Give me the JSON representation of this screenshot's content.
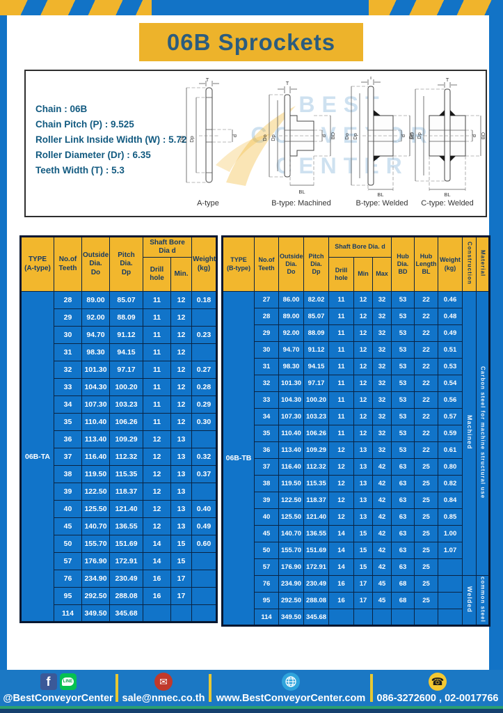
{
  "page": {
    "title": "06B Sprockets"
  },
  "specs": {
    "text": "Chain : 06B\nChain Pitch (P) : 9.525\nRoller Link Inside Width (W) : 5.72\nRoller Diameter (Dr) : 6.35\nTeeth Width (T) : 5.3"
  },
  "watermark": {
    "text": "BEST\nCONVEYOR\nCENTER"
  },
  "diagrams": {
    "captions": {
      "a": "A-type",
      "b_machined": "B-type: Machined",
      "b_welded": "B-type: Welded",
      "c_welded": "C-type: Welded"
    },
    "labels": {
      "T": "T",
      "Do": "Do",
      "Dp": "Dp",
      "d": "d",
      "BD": "BD",
      "BL": "BL"
    }
  },
  "table_a": {
    "headers": {
      "type": "TYPE\n(A-type)",
      "teeth": "No.of\nTeeth",
      "outside": "Outside\nDia.\nDo",
      "pitch": "Pitch Dia.\nDp",
      "shaft": "Shaft Bore Dia d",
      "drill": "Drill hole",
      "min": "Min.",
      "weight": "Weight\n(kg)"
    },
    "rows": [
      [
        "28",
        "89.00",
        "85.07",
        "11",
        "12",
        "0.18"
      ],
      [
        "29",
        "92.00",
        "88.09",
        "11",
        "12",
        ""
      ],
      [
        "30",
        "94.70",
        "91.12",
        "11",
        "12",
        "0.23"
      ],
      [
        "31",
        "98.30",
        "94.15",
        "11",
        "12",
        ""
      ],
      [
        "32",
        "101.30",
        "97.17",
        "11",
        "12",
        "0.27"
      ],
      [
        "33",
        "104.30",
        "100.20",
        "11",
        "12",
        "0.28"
      ],
      [
        "34",
        "107.30",
        "103.23",
        "11",
        "12",
        "0.29"
      ],
      [
        "35",
        "110.40",
        "106.26",
        "11",
        "12",
        "0.30"
      ],
      [
        "36",
        "113.40",
        "109.29",
        "12",
        "13",
        ""
      ],
      [
        "37",
        "116.40",
        "112.32",
        "12",
        "13",
        "0.32"
      ],
      [
        "38",
        "119.50",
        "115.35",
        "12",
        "13",
        "0.37"
      ],
      [
        "39",
        "122.50",
        "118.37",
        "12",
        "13",
        ""
      ],
      [
        "40",
        "125.50",
        "121.40",
        "12",
        "13",
        "0.40"
      ],
      [
        "45",
        "140.70",
        "136.55",
        "12",
        "13",
        "0.49"
      ],
      [
        "50",
        "155.70",
        "151.69",
        "14",
        "15",
        "0.60"
      ],
      [
        "57",
        "176.90",
        "172.91",
        "14",
        "15",
        ""
      ],
      [
        "76",
        "234.90",
        "230.49",
        "16",
        "17",
        ""
      ],
      [
        "95",
        "292.50",
        "288.08",
        "16",
        "17",
        ""
      ],
      [
        "114",
        "349.50",
        "345.68",
        "",
        "",
        ""
      ]
    ],
    "merges": [
      {
        "row": 0,
        "pos": "start",
        "rowspan": 19,
        "text": "06B-TA",
        "class": "type-cell",
        "name": "type-group-label-a",
        "vertical": false
      }
    ]
  },
  "table_b": {
    "headers": {
      "type": "TYPE\n(B-type)",
      "teeth": "No.of\nTeeth",
      "outside": "Outside\nDia.\nDo",
      "pitch": "Pitch\nDia.\nDp",
      "shaft": "Shaft Bore Dia. d",
      "drill": "Drill hole",
      "min": "Min",
      "max": "Max",
      "hub_dia": "Hub\nDia.\nBD",
      "hub_len": "Hub\nLength\nBL",
      "weight": "Weight\n(kg)",
      "construction": "Construction",
      "material": "Material"
    },
    "rows": [
      [
        "27",
        "86.00",
        "82.02",
        "11",
        "12",
        "32",
        "53",
        "22",
        "0.46"
      ],
      [
        "28",
        "89.00",
        "85.07",
        "11",
        "12",
        "32",
        "53",
        "22",
        "0.48"
      ],
      [
        "29",
        "92.00",
        "88.09",
        "11",
        "12",
        "32",
        "53",
        "22",
        "0.49"
      ],
      [
        "30",
        "94.70",
        "91.12",
        "11",
        "12",
        "32",
        "53",
        "22",
        "0.51"
      ],
      [
        "31",
        "98.30",
        "94.15",
        "11",
        "12",
        "32",
        "53",
        "22",
        "0.53"
      ],
      [
        "32",
        "101.30",
        "97.17",
        "11",
        "12",
        "32",
        "53",
        "22",
        "0.54"
      ],
      [
        "33",
        "104.30",
        "100.20",
        "11",
        "12",
        "32",
        "53",
        "22",
        "0.56"
      ],
      [
        "34",
        "107.30",
        "103.23",
        "11",
        "12",
        "32",
        "53",
        "22",
        "0.57"
      ],
      [
        "35",
        "110.40",
        "106.26",
        "11",
        "12",
        "32",
        "53",
        "22",
        "0.59"
      ],
      [
        "36",
        "113.40",
        "109.29",
        "12",
        "13",
        "32",
        "53",
        "22",
        "0.61"
      ],
      [
        "37",
        "116.40",
        "112.32",
        "12",
        "13",
        "42",
        "63",
        "25",
        "0.80"
      ],
      [
        "38",
        "119.50",
        "115.35",
        "12",
        "13",
        "42",
        "63",
        "25",
        "0.82"
      ],
      [
        "39",
        "122.50",
        "118.37",
        "12",
        "13",
        "42",
        "63",
        "25",
        "0.84"
      ],
      [
        "40",
        "125.50",
        "121.40",
        "12",
        "13",
        "42",
        "63",
        "25",
        "0.85"
      ],
      [
        "45",
        "140.70",
        "136.55",
        "14",
        "15",
        "42",
        "63",
        "25",
        "1.00"
      ],
      [
        "50",
        "155.70",
        "151.69",
        "14",
        "15",
        "42",
        "63",
        "25",
        "1.07"
      ],
      [
        "57",
        "176.90",
        "172.91",
        "14",
        "15",
        "42",
        "63",
        "25",
        ""
      ],
      [
        "76",
        "234.90",
        "230.49",
        "16",
        "17",
        "45",
        "68",
        "25",
        ""
      ],
      [
        "95",
        "292.50",
        "288.08",
        "16",
        "17",
        "45",
        "68",
        "25",
        ""
      ],
      [
        "114",
        "349.50",
        "345.68",
        "",
        "",
        "",
        "",
        "",
        ""
      ]
    ],
    "merges": [
      {
        "row": 0,
        "pos": "start",
        "rowspan": 20,
        "text": "06B-TB",
        "class": "type-cell",
        "name": "type-group-label-b",
        "vertical": false
      },
      {
        "row": 0,
        "pos": "end",
        "rowspan": 17,
        "text": "Machined",
        "class": "",
        "name": "construction-value-machined",
        "vertical": true
      },
      {
        "row": 0,
        "pos": "end",
        "rowspan": 17,
        "text": "Carbon  steel  for  machine  structural  use",
        "class": "small",
        "name": "material-value-carbon-steel",
        "vertical": true
      },
      {
        "row": 17,
        "pos": "end",
        "rowspan": 3,
        "text": "Welded",
        "class": "",
        "name": "construction-value-welded",
        "vertical": true
      },
      {
        "row": 17,
        "pos": "end",
        "rowspan": 3,
        "text": "common steel",
        "class": "small",
        "name": "material-value-common-steel",
        "vertical": true
      }
    ]
  },
  "footer": {
    "social_handle": "@BestConveyorCenter",
    "line_icon_text": "LINE",
    "facebook_icon_text": "f",
    "email": "sale@nmec.co.th",
    "website": "www.BestConveyorCenter.com",
    "phones": "086-3272600 , 02-0017766"
  },
  "colors": {
    "frame_blue": "#1273c6",
    "banner_yellow": "#edb32b",
    "table_header_yellow": "#f2b72d",
    "table_body_blue": "#1174c9",
    "grid_navy": "#0a2342",
    "teal_strip": "#2aa071",
    "navy_strip": "#15406e"
  }
}
